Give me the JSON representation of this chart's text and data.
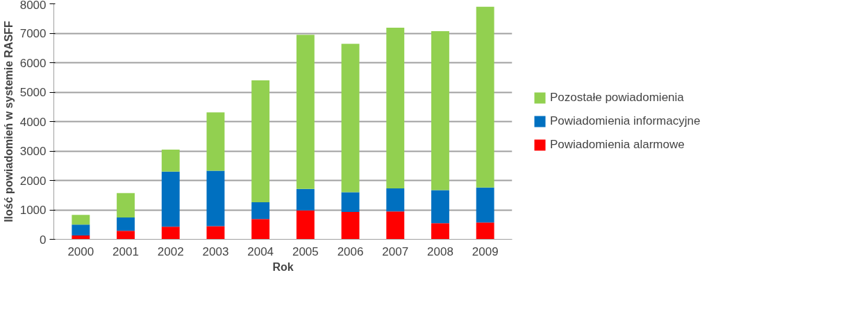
{
  "chart_data": {
    "type": "bar",
    "stacked": true,
    "xlabel": "Rok",
    "ylabel": "Ilość powiadomień w systemie RASFF",
    "categories": [
      "2000",
      "2001",
      "2002",
      "2003",
      "2004",
      "2005",
      "2006",
      "2007",
      "2008",
      "2009"
    ],
    "series": [
      {
        "name": "Powiadomienia alarmowe",
        "color": "#ff0000",
        "values": [
          130,
          290,
          430,
          450,
          690,
          980,
          930,
          950,
          550,
          570
        ]
      },
      {
        "name": "Powiadomienia informacyjne",
        "color": "#0070c0",
        "values": [
          370,
          450,
          1870,
          1880,
          570,
          730,
          670,
          780,
          1120,
          1190
        ]
      },
      {
        "name": "Pozostałe powiadomienia",
        "color": "#92d050",
        "values": [
          330,
          830,
          750,
          1980,
          4140,
          5240,
          5040,
          5460,
          5400,
          6140
        ]
      }
    ],
    "ylim": [
      0,
      8000
    ],
    "yticks": [
      0,
      1000,
      2000,
      3000,
      4000,
      5000,
      6000,
      7000,
      8000
    ],
    "grid": "y",
    "legend": "right"
  }
}
